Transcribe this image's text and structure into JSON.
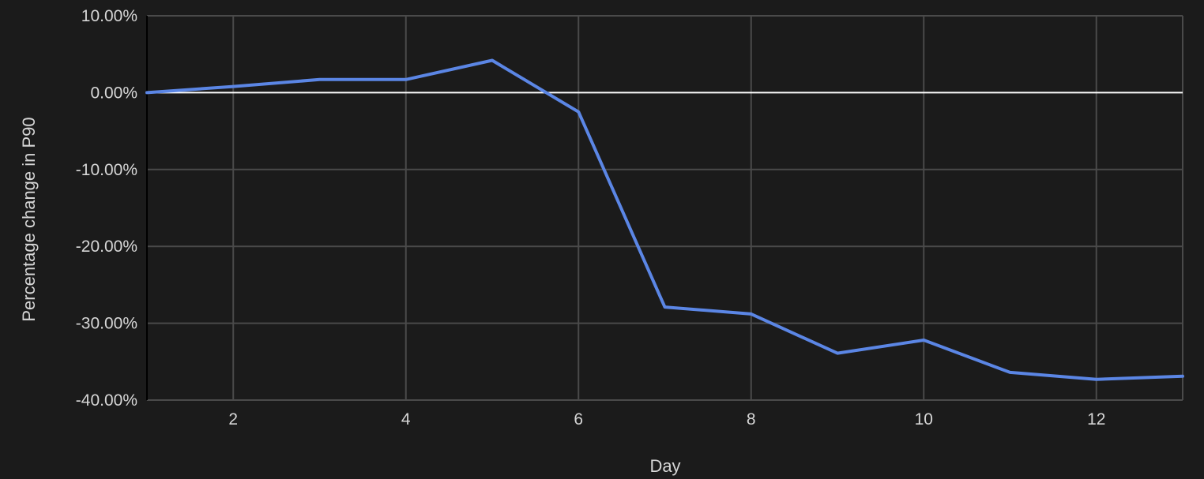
{
  "chart_data": {
    "type": "line",
    "title": "",
    "xlabel": "Day",
    "ylabel": "Percentage change in P90",
    "xlim": [
      1,
      13
    ],
    "ylim": [
      -40,
      10
    ],
    "x_ticks": [
      2,
      4,
      6,
      8,
      10,
      12
    ],
    "y_ticks": [
      10,
      0,
      -10,
      -20,
      -30,
      -40
    ],
    "y_tick_labels": [
      "10.00%",
      "0.00%",
      "-10.00%",
      "-20.00%",
      "-30.00%",
      "-40.00%"
    ],
    "grid": true,
    "legend": "none",
    "colors": {
      "background": "#1b1b1b",
      "series": "#5b86e5",
      "grid": "#4a4a4a",
      "zero_line": "#ffffff"
    },
    "series": [
      {
        "x": [
          1,
          2,
          3,
          4,
          5,
          6,
          7,
          8,
          9,
          10,
          11,
          12,
          13
        ],
        "values": [
          0,
          0.8,
          1.7,
          1.7,
          4.2,
          -2.5,
          -27.9,
          -28.8,
          -33.9,
          -32.2,
          -36.4,
          -37.3,
          -36.9
        ]
      }
    ]
  }
}
